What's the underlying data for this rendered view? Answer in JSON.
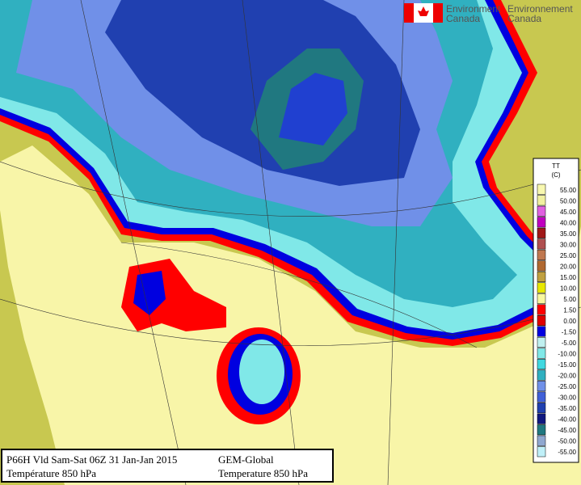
{
  "logo": {
    "english": [
      "Environment",
      "Canada"
    ],
    "french": [
      "Environnement",
      "Canada"
    ]
  },
  "legend": {
    "title": "TT",
    "unit": "(C)",
    "levels": [
      {
        "label": "55.00",
        "color": "#f8f8b0"
      },
      {
        "label": "50.00",
        "color": "#f0f0a0"
      },
      {
        "label": "45.00",
        "color": "#e060e0"
      },
      {
        "label": "40.00",
        "color": "#c000c0"
      },
      {
        "label": "35.00",
        "color": "#a01818"
      },
      {
        "label": "30.00",
        "color": "#b05050"
      },
      {
        "label": "25.00",
        "color": "#c07850"
      },
      {
        "label": "20.00",
        "color": "#b06830"
      },
      {
        "label": "15.00",
        "color": "#c0a040"
      },
      {
        "label": "10.00",
        "color": "#e8e800"
      },
      {
        "label": "5.00",
        "color": "#f8f8a0"
      },
      {
        "label": "1.50",
        "color": "#ff0000"
      },
      {
        "label": "0.00",
        "color": "#e00000"
      },
      {
        "label": "-1.50",
        "color": "#0000e0"
      },
      {
        "label": "-5.00",
        "color": "#c0f0f0"
      },
      {
        "label": "-10.00",
        "color": "#80e8e8"
      },
      {
        "label": "-15.00",
        "color": "#40d8e0"
      },
      {
        "label": "-20.00",
        "color": "#30b0c0"
      },
      {
        "label": "-25.00",
        "color": "#7090e8"
      },
      {
        "label": "-30.00",
        "color": "#4060d8"
      },
      {
        "label": "-35.00",
        "color": "#2040b0"
      },
      {
        "label": "-40.00",
        "color": "#101880"
      },
      {
        "label": "-45.00",
        "color": "#207880"
      },
      {
        "label": "-50.00",
        "color": "#90a8d0"
      },
      {
        "label": "-55.00",
        "color": "#c0f0f8"
      }
    ]
  },
  "info": {
    "left": [
      "P66H Vld Sam-Sat 06Z 31 Jan-Jan 2015",
      "Température 850 hPa"
    ],
    "right": [
      "GEM-Global",
      "Temperature 850 hPa"
    ]
  }
}
